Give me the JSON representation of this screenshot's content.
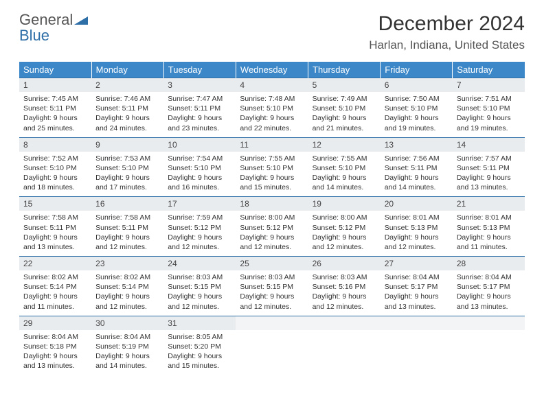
{
  "logo": {
    "word1": "General",
    "word2": "Blue"
  },
  "title": "December 2024",
  "location": "Harlan, Indiana, United States",
  "colors": {
    "header_bg": "#3b87c8",
    "header_text": "#ffffff",
    "daynum_bg": "#e9ecef",
    "border": "#2f6fa8",
    "logo_gray": "#555555",
    "logo_blue": "#2f6fa8"
  },
  "weekdays": [
    "Sunday",
    "Monday",
    "Tuesday",
    "Wednesday",
    "Thursday",
    "Friday",
    "Saturday"
  ],
  "weeks": [
    [
      {
        "n": "1",
        "sr": "Sunrise: 7:45 AM",
        "ss": "Sunset: 5:11 PM",
        "d1": "Daylight: 9 hours",
        "d2": "and 25 minutes."
      },
      {
        "n": "2",
        "sr": "Sunrise: 7:46 AM",
        "ss": "Sunset: 5:11 PM",
        "d1": "Daylight: 9 hours",
        "d2": "and 24 minutes."
      },
      {
        "n": "3",
        "sr": "Sunrise: 7:47 AM",
        "ss": "Sunset: 5:11 PM",
        "d1": "Daylight: 9 hours",
        "d2": "and 23 minutes."
      },
      {
        "n": "4",
        "sr": "Sunrise: 7:48 AM",
        "ss": "Sunset: 5:10 PM",
        "d1": "Daylight: 9 hours",
        "d2": "and 22 minutes."
      },
      {
        "n": "5",
        "sr": "Sunrise: 7:49 AM",
        "ss": "Sunset: 5:10 PM",
        "d1": "Daylight: 9 hours",
        "d2": "and 21 minutes."
      },
      {
        "n": "6",
        "sr": "Sunrise: 7:50 AM",
        "ss": "Sunset: 5:10 PM",
        "d1": "Daylight: 9 hours",
        "d2": "and 19 minutes."
      },
      {
        "n": "7",
        "sr": "Sunrise: 7:51 AM",
        "ss": "Sunset: 5:10 PM",
        "d1": "Daylight: 9 hours",
        "d2": "and 19 minutes."
      }
    ],
    [
      {
        "n": "8",
        "sr": "Sunrise: 7:52 AM",
        "ss": "Sunset: 5:10 PM",
        "d1": "Daylight: 9 hours",
        "d2": "and 18 minutes."
      },
      {
        "n": "9",
        "sr": "Sunrise: 7:53 AM",
        "ss": "Sunset: 5:10 PM",
        "d1": "Daylight: 9 hours",
        "d2": "and 17 minutes."
      },
      {
        "n": "10",
        "sr": "Sunrise: 7:54 AM",
        "ss": "Sunset: 5:10 PM",
        "d1": "Daylight: 9 hours",
        "d2": "and 16 minutes."
      },
      {
        "n": "11",
        "sr": "Sunrise: 7:55 AM",
        "ss": "Sunset: 5:10 PM",
        "d1": "Daylight: 9 hours",
        "d2": "and 15 minutes."
      },
      {
        "n": "12",
        "sr": "Sunrise: 7:55 AM",
        "ss": "Sunset: 5:10 PM",
        "d1": "Daylight: 9 hours",
        "d2": "and 14 minutes."
      },
      {
        "n": "13",
        "sr": "Sunrise: 7:56 AM",
        "ss": "Sunset: 5:11 PM",
        "d1": "Daylight: 9 hours",
        "d2": "and 14 minutes."
      },
      {
        "n": "14",
        "sr": "Sunrise: 7:57 AM",
        "ss": "Sunset: 5:11 PM",
        "d1": "Daylight: 9 hours",
        "d2": "and 13 minutes."
      }
    ],
    [
      {
        "n": "15",
        "sr": "Sunrise: 7:58 AM",
        "ss": "Sunset: 5:11 PM",
        "d1": "Daylight: 9 hours",
        "d2": "and 13 minutes."
      },
      {
        "n": "16",
        "sr": "Sunrise: 7:58 AM",
        "ss": "Sunset: 5:11 PM",
        "d1": "Daylight: 9 hours",
        "d2": "and 12 minutes."
      },
      {
        "n": "17",
        "sr": "Sunrise: 7:59 AM",
        "ss": "Sunset: 5:12 PM",
        "d1": "Daylight: 9 hours",
        "d2": "and 12 minutes."
      },
      {
        "n": "18",
        "sr": "Sunrise: 8:00 AM",
        "ss": "Sunset: 5:12 PM",
        "d1": "Daylight: 9 hours",
        "d2": "and 12 minutes."
      },
      {
        "n": "19",
        "sr": "Sunrise: 8:00 AM",
        "ss": "Sunset: 5:12 PM",
        "d1": "Daylight: 9 hours",
        "d2": "and 12 minutes."
      },
      {
        "n": "20",
        "sr": "Sunrise: 8:01 AM",
        "ss": "Sunset: 5:13 PM",
        "d1": "Daylight: 9 hours",
        "d2": "and 12 minutes."
      },
      {
        "n": "21",
        "sr": "Sunrise: 8:01 AM",
        "ss": "Sunset: 5:13 PM",
        "d1": "Daylight: 9 hours",
        "d2": "and 11 minutes."
      }
    ],
    [
      {
        "n": "22",
        "sr": "Sunrise: 8:02 AM",
        "ss": "Sunset: 5:14 PM",
        "d1": "Daylight: 9 hours",
        "d2": "and 11 minutes."
      },
      {
        "n": "23",
        "sr": "Sunrise: 8:02 AM",
        "ss": "Sunset: 5:14 PM",
        "d1": "Daylight: 9 hours",
        "d2": "and 12 minutes."
      },
      {
        "n": "24",
        "sr": "Sunrise: 8:03 AM",
        "ss": "Sunset: 5:15 PM",
        "d1": "Daylight: 9 hours",
        "d2": "and 12 minutes."
      },
      {
        "n": "25",
        "sr": "Sunrise: 8:03 AM",
        "ss": "Sunset: 5:15 PM",
        "d1": "Daylight: 9 hours",
        "d2": "and 12 minutes."
      },
      {
        "n": "26",
        "sr": "Sunrise: 8:03 AM",
        "ss": "Sunset: 5:16 PM",
        "d1": "Daylight: 9 hours",
        "d2": "and 12 minutes."
      },
      {
        "n": "27",
        "sr": "Sunrise: 8:04 AM",
        "ss": "Sunset: 5:17 PM",
        "d1": "Daylight: 9 hours",
        "d2": "and 13 minutes."
      },
      {
        "n": "28",
        "sr": "Sunrise: 8:04 AM",
        "ss": "Sunset: 5:17 PM",
        "d1": "Daylight: 9 hours",
        "d2": "and 13 minutes."
      }
    ],
    [
      {
        "n": "29",
        "sr": "Sunrise: 8:04 AM",
        "ss": "Sunset: 5:18 PM",
        "d1": "Daylight: 9 hours",
        "d2": "and 13 minutes."
      },
      {
        "n": "30",
        "sr": "Sunrise: 8:04 AM",
        "ss": "Sunset: 5:19 PM",
        "d1": "Daylight: 9 hours",
        "d2": "and 14 minutes."
      },
      {
        "n": "31",
        "sr": "Sunrise: 8:05 AM",
        "ss": "Sunset: 5:20 PM",
        "d1": "Daylight: 9 hours",
        "d2": "and 15 minutes."
      },
      null,
      null,
      null,
      null
    ]
  ]
}
